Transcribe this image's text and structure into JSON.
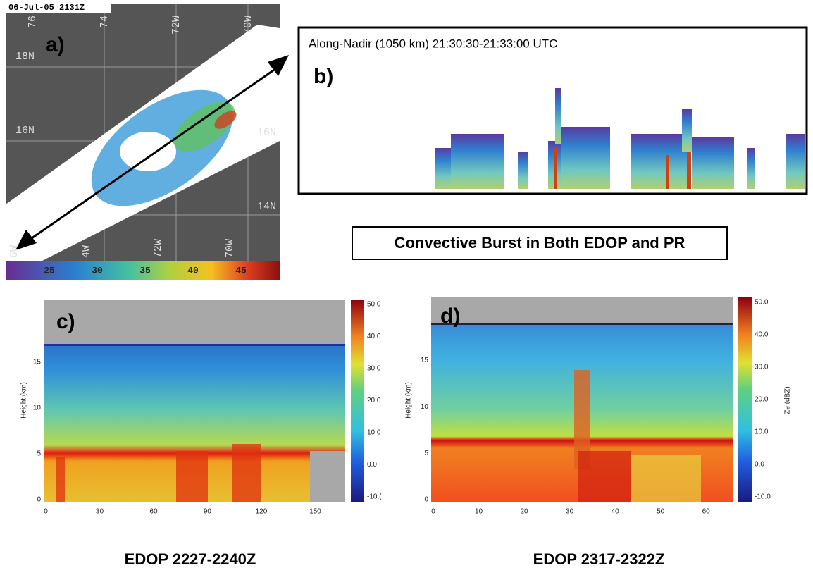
{
  "panel_a": {
    "timestamp": "06-Jul-05 2131Z",
    "label": "a)",
    "lon_top": [
      "76",
      "74",
      "72W",
      "70W"
    ],
    "lat_left": [
      "18N",
      "16N"
    ],
    "lat_right": [
      "16N",
      "14N"
    ],
    "lon_bottom": [
      "6W",
      "4W",
      "72W",
      "70W"
    ],
    "colorbar": [
      "25",
      "30",
      "35",
      "40",
      "45"
    ]
  },
  "panel_b": {
    "title": "Along-Nadir (1050 km) 21:30:30-21:33:00 UTC",
    "label": "b)"
  },
  "banner": "Convective Burst in Both EDOP and PR",
  "panel_c": {
    "label": "c)",
    "y_label": "Height (km)",
    "yticks": [
      "0",
      "5",
      "10",
      "15"
    ],
    "xticks": [
      "0",
      "30",
      "60",
      "90",
      "120",
      "150"
    ],
    "colorbar": [
      "50.0",
      "40.0",
      "30.0",
      "20.0",
      "10.0",
      "0.0",
      "-10.("
    ],
    "caption": "EDOP 2227-2240Z"
  },
  "panel_d": {
    "label": "d)",
    "y_label": "Height (km)",
    "yticks": [
      "0",
      "5",
      "10",
      "15"
    ],
    "xticks": [
      "0",
      "10",
      "20",
      "30",
      "40",
      "50",
      "60"
    ],
    "colorbar": [
      "50.0",
      "40.0",
      "30.0",
      "20.0",
      "10.0",
      "0.0",
      "-10.0"
    ],
    "colorbar_label": "Ze (dBZ)",
    "caption": "EDOP 2317-2322Z"
  }
}
